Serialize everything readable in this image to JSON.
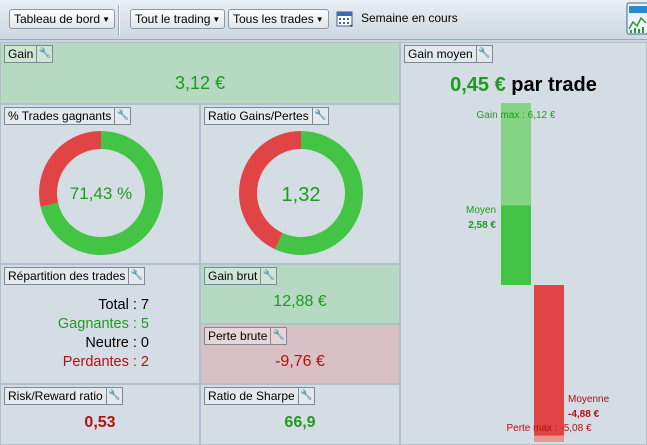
{
  "toolbar": {
    "dashboard": "Tableau de bord",
    "trading": "Tout le trading",
    "trades": "Tous les trades",
    "period": "Semaine en cours",
    "calendar_icon": "calendar-icon",
    "chart_icon": "chart-window-icon"
  },
  "panels": {
    "gain": {
      "title": "Gain",
      "value": "3,12 €"
    },
    "win_pct": {
      "title": "% Trades gagnants",
      "value": "71,43 %",
      "fraction": 0.7143
    },
    "ratio": {
      "title": "Ratio Gains/Pertes",
      "value": "1,32",
      "fraction": 0.569
    },
    "repartition": {
      "title": "Répartition des trades",
      "total": "Total : 7",
      "gagnantes": "Gagnantes : 5",
      "neutre": "Neutre : 0",
      "perdantes": "Perdantes : 2"
    },
    "gain_brut": {
      "title": "Gain brut",
      "value": "12,88 €"
    },
    "perte_brute": {
      "title": "Perte brute",
      "value": "-9,76 €"
    },
    "risk_reward": {
      "title": "Risk/Reward ratio",
      "value": "0,53"
    },
    "sharpe": {
      "title": "Ratio de Sharpe",
      "value": "66,9"
    },
    "gain_moyen": {
      "title": "Gain moyen",
      "amount": "0,45 €",
      "suffix": "par trade",
      "gain_max_label": "Gain max : 6,12 €",
      "moyen_label": "Moyen",
      "moyen_value": "2,58 €",
      "moyenne_label": "Moyenne",
      "moyenne_value": "-4,88 €",
      "perte_max_label": "Perte max : -5,08 €",
      "gain_max": 6.12,
      "gain_avg": 2.58,
      "loss_avg": -4.88,
      "loss_max": -5.08
    }
  },
  "colors": {
    "green": "#44c444",
    "green_light": "#84d484",
    "red": "#e04444",
    "red_light": "#e89494",
    "text_green": "#1e9a1e",
    "text_red": "#b01010"
  }
}
